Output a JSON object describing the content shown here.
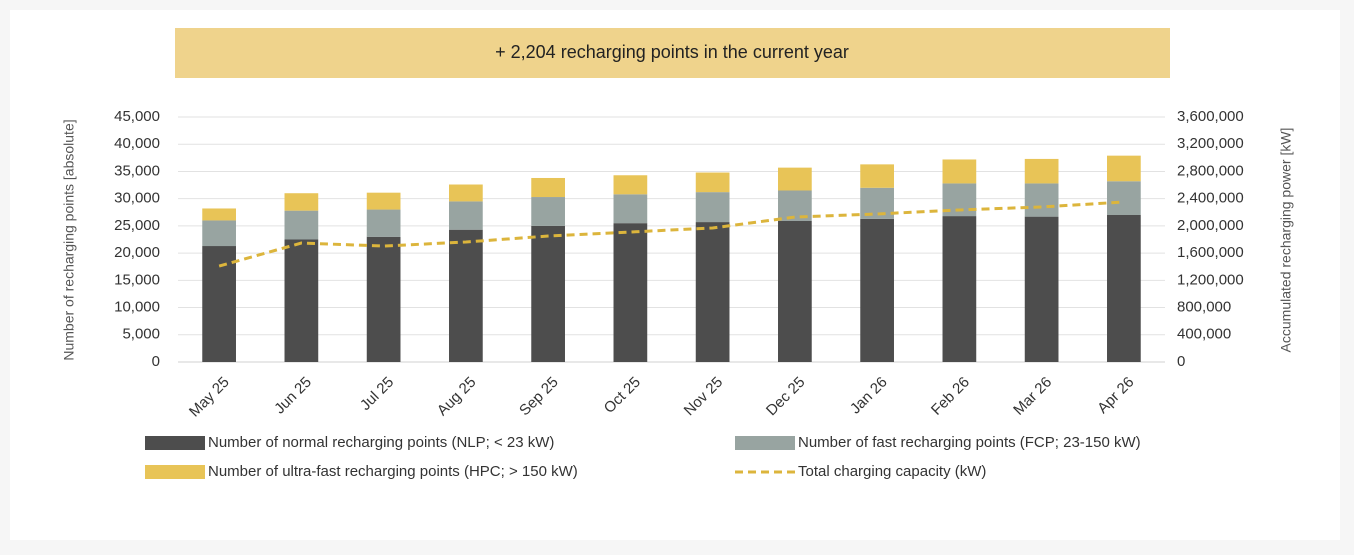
{
  "chart_data": {
    "type": "bar",
    "stacked": true,
    "title": "+ 2,204 recharging points in the current year",
    "y_label": "Number of recharging points [absolute]",
    "y2_label": "Accumulated recharging power [kW]",
    "categories": [
      "May 25",
      "Jun 25",
      "Jul 25",
      "Aug 25",
      "Sep 25",
      "Oct 25",
      "Nov 25",
      "Dec 25",
      "Jan 26",
      "Feb 26",
      "Mar 26",
      "Apr 26"
    ],
    "series": [
      {
        "name": "Number of normal recharging points (NLP; < 23 kW)",
        "type": "bar",
        "color": "#4d4d4d",
        "values": [
          21300,
          22500,
          23000,
          24300,
          25000,
          25500,
          25700,
          25900,
          26300,
          26800,
          26700,
          27000
        ]
      },
      {
        "name": "Number of fast recharging points (FCP; 23-150 kW)",
        "type": "bar",
        "color": "#98a4a1",
        "values": [
          4700,
          5300,
          5000,
          5200,
          5300,
          5300,
          5500,
          5600,
          5700,
          6000,
          6100,
          6200
        ]
      },
      {
        "name": "Number of ultra-fast recharging points (HPC; > 150 kW)",
        "type": "bar",
        "color": "#e8c457",
        "values": [
          2200,
          3200,
          3100,
          3100,
          3500,
          3500,
          3600,
          4200,
          4300,
          4400,
          4500,
          4700
        ]
      },
      {
        "name": "Total charging capacity (kW)",
        "type": "line",
        "axis": "y2",
        "color": "#dcb53c",
        "dashed": true,
        "values": [
          1410000,
          1748000,
          1704000,
          1763000,
          1851000,
          1910000,
          1969000,
          2130000,
          2175000,
          2234000,
          2278000,
          2351000
        ]
      }
    ],
    "ylim": [
      0,
      45000
    ],
    "yticks": [
      0,
      {
        "value": 5000,
        "label": "5,000"
      },
      {
        "value": 10000,
        "label": "10,000"
      },
      {
        "value": 15000,
        "label": "15,000"
      },
      {
        "value": 20000,
        "label": "20,000"
      },
      {
        "value": 25000,
        "label": "25,000"
      },
      {
        "value": 30000,
        "label": "30,000"
      },
      {
        "value": 35000,
        "label": "35,000"
      },
      {
        "value": 40000,
        "label": "40,000"
      },
      {
        "value": 45000,
        "label": "45,000"
      }
    ],
    "y2lim": [
      0,
      3600000
    ],
    "y2ticks": [
      0,
      {
        "value": 400000,
        "label": "400,000"
      },
      {
        "value": 800000,
        "label": "800,000"
      },
      {
        "value": 1200000,
        "label": "1,200,000"
      },
      {
        "value": 1600000,
        "label": "1,600,000"
      },
      {
        "value": 2000000,
        "label": "2,000,000"
      },
      {
        "value": 2400000,
        "label": "2,400,000"
      },
      {
        "value": 2800000,
        "label": "2,800,000"
      },
      {
        "value": 3200000,
        "label": "3,200,000"
      },
      {
        "value": 3600000,
        "label": "3,600,000"
      }
    ],
    "grid": true,
    "legend": "bottom",
    "banner_color": "#efd38c"
  }
}
